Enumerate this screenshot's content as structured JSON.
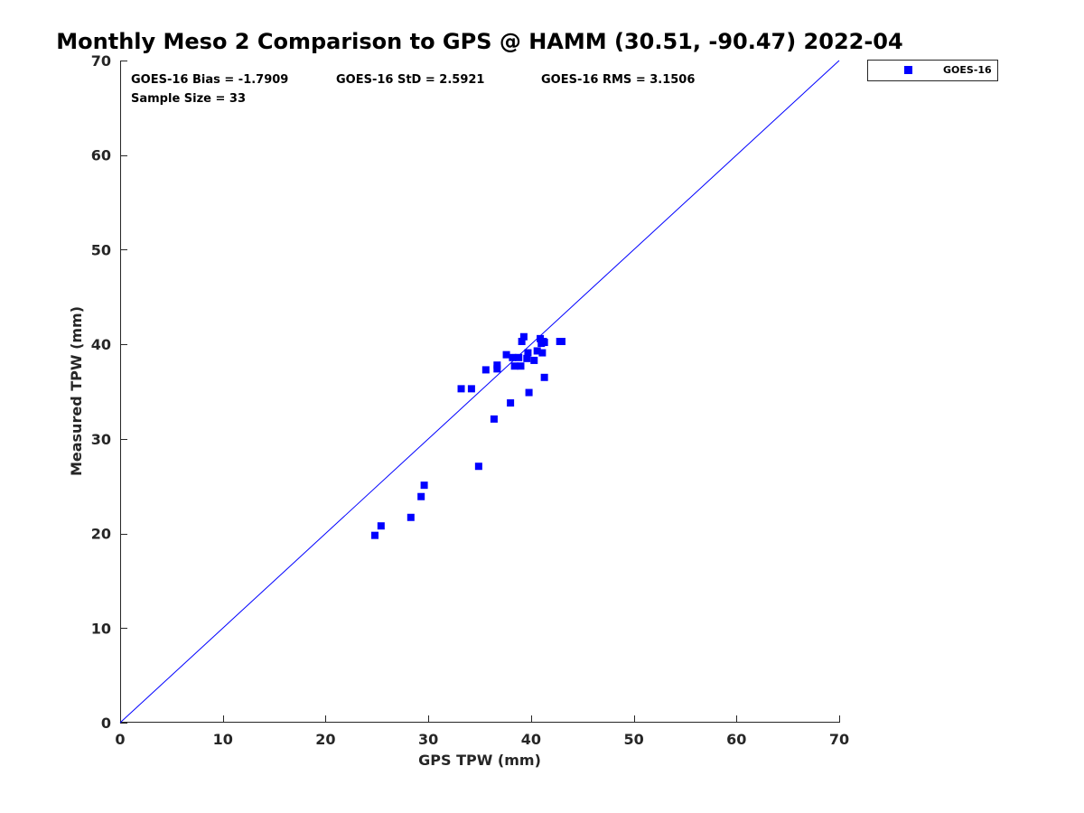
{
  "chart_data": {
    "type": "scatter",
    "title": "Monthly Meso 2 Comparison to GPS @ HAMM (30.51, -90.47) 2022-04",
    "xlabel": "GPS TPW (mm)",
    "ylabel": "Measured TPW (mm)",
    "xlim": [
      0,
      70
    ],
    "ylim": [
      0,
      70
    ],
    "xticks": [
      0,
      10,
      20,
      30,
      40,
      50,
      60,
      70
    ],
    "yticks": [
      0,
      10,
      20,
      30,
      40,
      50,
      60,
      70
    ],
    "grid": false,
    "legend_position": "top-right outside",
    "reference_line": {
      "type": "one-to-one",
      "color": "#0000ff"
    },
    "annotations": {
      "bias": "GOES-16 Bias = -1.7909",
      "std": "GOES-16 StD = 2.5921",
      "rms": "GOES-16 RMS = 3.1506",
      "sample": "Sample Size = 33"
    },
    "series": [
      {
        "name": "GOES-16",
        "color": "#0000ff",
        "marker": "square",
        "points": [
          [
            24.8,
            19.8
          ],
          [
            25.4,
            20.8
          ],
          [
            28.3,
            21.7
          ],
          [
            29.3,
            23.9
          ],
          [
            29.6,
            25.1
          ],
          [
            33.2,
            35.3
          ],
          [
            34.2,
            35.3
          ],
          [
            34.9,
            27.1
          ],
          [
            35.6,
            37.3
          ],
          [
            36.4,
            32.1
          ],
          [
            36.7,
            37.4
          ],
          [
            36.7,
            37.8
          ],
          [
            37.6,
            38.9
          ],
          [
            38.0,
            33.8
          ],
          [
            38.2,
            38.6
          ],
          [
            38.4,
            37.7
          ],
          [
            38.8,
            38.6
          ],
          [
            39.0,
            37.7
          ],
          [
            39.1,
            40.3
          ],
          [
            39.3,
            40.8
          ],
          [
            39.6,
            38.5
          ],
          [
            39.7,
            39.1
          ],
          [
            39.8,
            34.9
          ],
          [
            40.3,
            38.3
          ],
          [
            40.6,
            39.3
          ],
          [
            40.9,
            40.6
          ],
          [
            41.0,
            40.1
          ],
          [
            41.1,
            39.1
          ],
          [
            41.2,
            40.3
          ],
          [
            41.3,
            36.5
          ],
          [
            41.3,
            40.2
          ],
          [
            42.8,
            40.3
          ],
          [
            43.0,
            40.3
          ]
        ]
      }
    ]
  }
}
